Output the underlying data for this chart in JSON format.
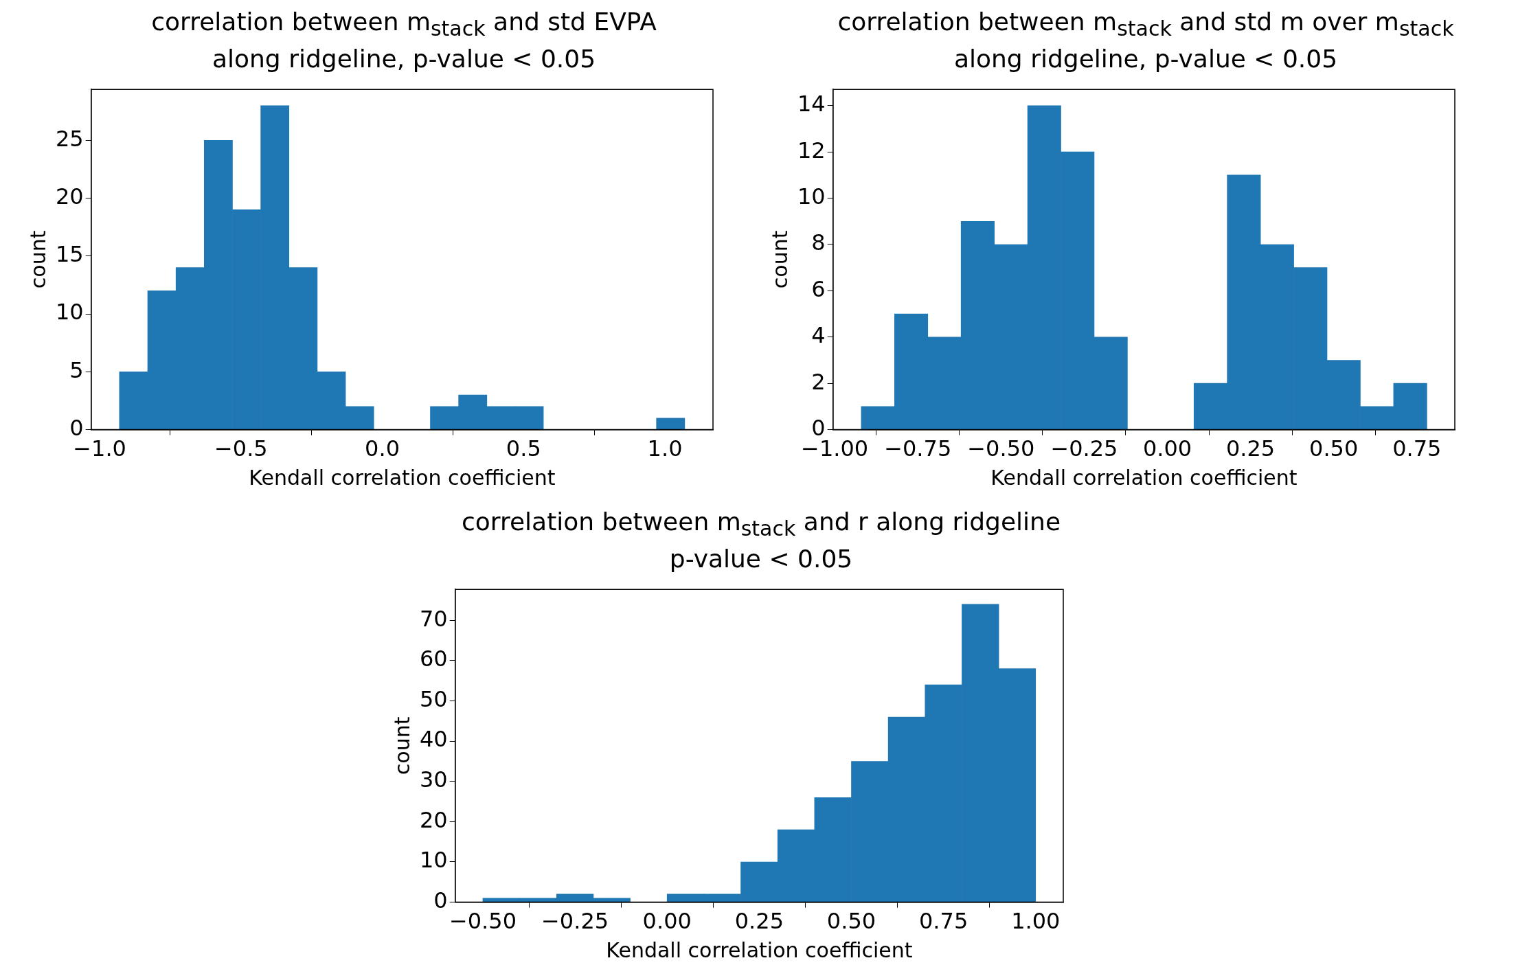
{
  "chart_data": [
    {
      "type": "histogram",
      "title": "correlation between m$_{stack}$ and std EVPA\nalong ridgeline, p-value < 0.05",
      "xlabel": "Kendall correlation coefficient",
      "ylabel": "count",
      "color": "#1f77b4",
      "bins": [
        -0.93,
        -0.83,
        -0.73,
        -0.63,
        -0.53,
        -0.43,
        -0.33,
        -0.23,
        -0.13,
        -0.03,
        0.07,
        0.17,
        0.27,
        0.37,
        0.47,
        0.57,
        0.67,
        0.77,
        0.87,
        0.97,
        1.07
      ],
      "values": [
        5,
        12,
        14,
        25,
        19,
        28,
        14,
        5,
        2,
        0,
        0,
        2,
        3,
        2,
        2,
        0,
        0,
        0,
        0,
        1
      ],
      "xlim": [
        -1.03,
        1.17
      ],
      "xticks": [
        {
          "value": -1,
          "label": "−1.0"
        },
        {
          "value": -0.5,
          "label": "−0.5"
        },
        {
          "value": 0,
          "label": "0.0"
        },
        {
          "value": 0.5,
          "label": "0.5"
        },
        {
          "value": 1,
          "label": "1.0"
        }
      ],
      "ylim": [
        0,
        29.4
      ],
      "yticks": [
        0,
        5,
        10,
        15,
        20,
        25
      ]
    },
    {
      "type": "histogram",
      "title": "correlation between m$_{stack}$ and std m over m$_{stack}$\nalong ridgeline, p-value < 0.05",
      "xlabel": "Kendall correlation coefficient",
      "ylabel": "count",
      "color": "#1f77b4",
      "bins": [
        -0.92,
        -0.82,
        -0.72,
        -0.62,
        -0.52,
        -0.42,
        -0.32,
        -0.22,
        -0.12,
        -0.02,
        0.08,
        0.18,
        0.28,
        0.38,
        0.48,
        0.58,
        0.68,
        0.78
      ],
      "values": [
        1,
        5,
        4,
        9,
        8,
        14,
        12,
        4,
        0,
        0,
        2,
        11,
        8,
        7,
        3,
        1,
        2
      ],
      "xlim": [
        -1.005,
        0.864
      ],
      "xticks": [
        {
          "value": -1,
          "label": "−1.00"
        },
        {
          "value": -0.75,
          "label": "−0.75"
        },
        {
          "value": -0.5,
          "label": "−0.50"
        },
        {
          "value": -0.25,
          "label": "−0.25"
        },
        {
          "value": 0,
          "label": "0.00"
        },
        {
          "value": 0.25,
          "label": "0.25"
        },
        {
          "value": 0.5,
          "label": "0.50"
        },
        {
          "value": 0.75,
          "label": "0.75"
        }
      ],
      "ylim": [
        0,
        14.7
      ],
      "yticks": [
        0,
        2,
        4,
        6,
        8,
        10,
        12,
        14
      ]
    },
    {
      "type": "histogram",
      "title": "correlation between m$_{stack}$ and r along ridgeline\np-value < 0.05",
      "xlabel": "Kendall correlation coefficient",
      "ylabel": "count",
      "color": "#1f77b4",
      "bins": [
        -0.5,
        -0.4,
        -0.3,
        -0.2,
        -0.1,
        0,
        0.1,
        0.2,
        0.3,
        0.4,
        0.5,
        0.6,
        0.7,
        0.8,
        0.9,
        1.0
      ],
      "values": [
        1,
        1,
        2,
        1,
        0,
        2,
        2,
        10,
        18,
        26,
        35,
        46,
        54,
        74,
        58
      ],
      "xlim": [
        -0.575,
        1.075
      ],
      "xticks": [
        {
          "value": -0.5,
          "label": "−0.50"
        },
        {
          "value": -0.25,
          "label": "−0.25"
        },
        {
          "value": 0,
          "label": "0.00"
        },
        {
          "value": 0.25,
          "label": "0.25"
        },
        {
          "value": 0.5,
          "label": "0.50"
        },
        {
          "value": 0.75,
          "label": "0.75"
        },
        {
          "value": 1,
          "label": "1.00"
        }
      ],
      "ylim": [
        0,
        77.7
      ],
      "yticks": [
        0,
        10,
        20,
        30,
        40,
        50,
        60,
        70
      ]
    }
  ]
}
